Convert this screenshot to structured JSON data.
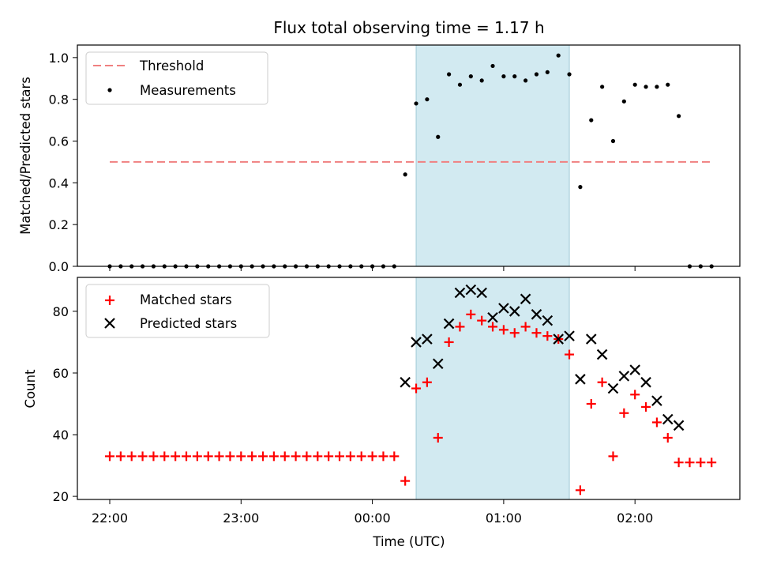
{
  "chart_data": [
    {
      "type": "scatter",
      "title": "Flux total observing time = 1.17 h",
      "xlabel": "",
      "ylabel": "Matched/Predicted stars",
      "ylim": [
        0,
        1.06
      ],
      "yticks": [
        "0.0",
        "0.2",
        "0.4",
        "0.6",
        "0.8",
        "1.0"
      ],
      "ytick_values": [
        0,
        0.2,
        0.4,
        0.6,
        0.8,
        1.0
      ],
      "shaded_region": {
        "start": "00:20",
        "end": "01:30",
        "color": "#add8e6"
      },
      "legend_position": "upper left",
      "series": [
        {
          "name": "Threshold",
          "kind": "dashed-line",
          "color": "#f08080",
          "x": [
            "22:00",
            "02:35"
          ],
          "y": [
            0.5,
            0.5
          ]
        },
        {
          "name": "Measurements",
          "kind": "points",
          "color": "#000000",
          "x": [
            "22:00",
            "22:05",
            "22:10",
            "22:15",
            "22:20",
            "22:25",
            "22:30",
            "22:35",
            "22:40",
            "22:45",
            "22:50",
            "22:55",
            "23:00",
            "23:05",
            "23:10",
            "23:15",
            "23:20",
            "23:25",
            "23:30",
            "23:35",
            "23:40",
            "23:45",
            "23:50",
            "23:55",
            "00:00",
            "00:05",
            "00:10",
            "00:15",
            "00:20",
            "00:25",
            "00:30",
            "00:35",
            "00:40",
            "00:45",
            "00:50",
            "00:55",
            "01:00",
            "01:05",
            "01:10",
            "01:15",
            "01:20",
            "01:25",
            "01:30",
            "01:35",
            "01:40",
            "01:45",
            "01:50",
            "01:55",
            "02:00",
            "02:05",
            "02:10",
            "02:15",
            "02:20",
            "02:25",
            "02:30",
            "02:35"
          ],
          "y": [
            0,
            0,
            0,
            0,
            0,
            0,
            0,
            0,
            0,
            0,
            0,
            0,
            0,
            0,
            0,
            0,
            0,
            0,
            0,
            0,
            0,
            0,
            0,
            0,
            0,
            0,
            0,
            0.44,
            0.78,
            0.8,
            0.62,
            0.92,
            0.87,
            0.91,
            0.89,
            0.96,
            0.91,
            0.91,
            0.89,
            0.92,
            0.93,
            1.01,
            0.92,
            0.38,
            0.7,
            0.86,
            0.6,
            0.79,
            0.87,
            0.86,
            0.86,
            0.87,
            0.72,
            0,
            0,
            0
          ]
        }
      ]
    },
    {
      "type": "scatter",
      "title": "",
      "xlabel": "Time (UTC)",
      "ylabel": "Count",
      "ylim": [
        19,
        91
      ],
      "yticks": [
        "20",
        "40",
        "60",
        "80"
      ],
      "ytick_values": [
        20,
        40,
        60,
        80
      ],
      "xticks": [
        "22:00",
        "23:00",
        "00:00",
        "01:00",
        "02:00"
      ],
      "xtick_values_minutes": [
        0,
        60,
        120,
        180,
        240
      ],
      "shaded_region": {
        "start": "00:20",
        "end": "01:30",
        "color": "#add8e6"
      },
      "legend_position": "upper left",
      "series": [
        {
          "name": "Matched stars",
          "kind": "plus",
          "color": "#ff0000",
          "x": [
            "22:00",
            "22:05",
            "22:10",
            "22:15",
            "22:20",
            "22:25",
            "22:30",
            "22:35",
            "22:40",
            "22:45",
            "22:50",
            "22:55",
            "23:00",
            "23:05",
            "23:10",
            "23:15",
            "23:20",
            "23:25",
            "23:30",
            "23:35",
            "23:40",
            "23:45",
            "23:50",
            "23:55",
            "00:00",
            "00:05",
            "00:10",
            "00:15",
            "00:20",
            "00:25",
            "00:30",
            "00:35",
            "00:40",
            "00:45",
            "00:50",
            "00:55",
            "01:00",
            "01:05",
            "01:10",
            "01:15",
            "01:20",
            "01:25",
            "01:30",
            "01:35",
            "01:40",
            "01:45",
            "01:50",
            "01:55",
            "02:00",
            "02:05",
            "02:10",
            "02:15",
            "02:20",
            "02:25",
            "02:30",
            "02:35"
          ],
          "y": [
            33,
            33,
            33,
            33,
            33,
            33,
            33,
            33,
            33,
            33,
            33,
            33,
            33,
            33,
            33,
            33,
            33,
            33,
            33,
            33,
            33,
            33,
            33,
            33,
            33,
            33,
            33,
            25,
            55,
            57,
            39,
            70,
            75,
            79,
            77,
            75,
            74,
            73,
            75,
            73,
            72,
            71,
            66,
            22,
            50,
            57,
            33,
            47,
            53,
            49,
            44,
            39,
            31,
            31,
            31,
            31
          ]
        },
        {
          "name": "Predicted stars",
          "kind": "x",
          "color": "#000000",
          "x": [
            "00:15",
            "00:20",
            "00:25",
            "00:30",
            "00:35",
            "00:40",
            "00:45",
            "00:50",
            "00:55",
            "01:00",
            "01:05",
            "01:10",
            "01:15",
            "01:20",
            "01:25",
            "01:30",
            "01:35",
            "01:40",
            "01:45",
            "01:50",
            "01:55",
            "02:00",
            "02:05",
            "02:10",
            "02:15",
            "02:20"
          ],
          "y": [
            57,
            70,
            71,
            63,
            76,
            86,
            87,
            86,
            78,
            81,
            80,
            84,
            79,
            77,
            71,
            72,
            58,
            71,
            66,
            55,
            59,
            61,
            57,
            51,
            45,
            43
          ]
        }
      ]
    }
  ]
}
